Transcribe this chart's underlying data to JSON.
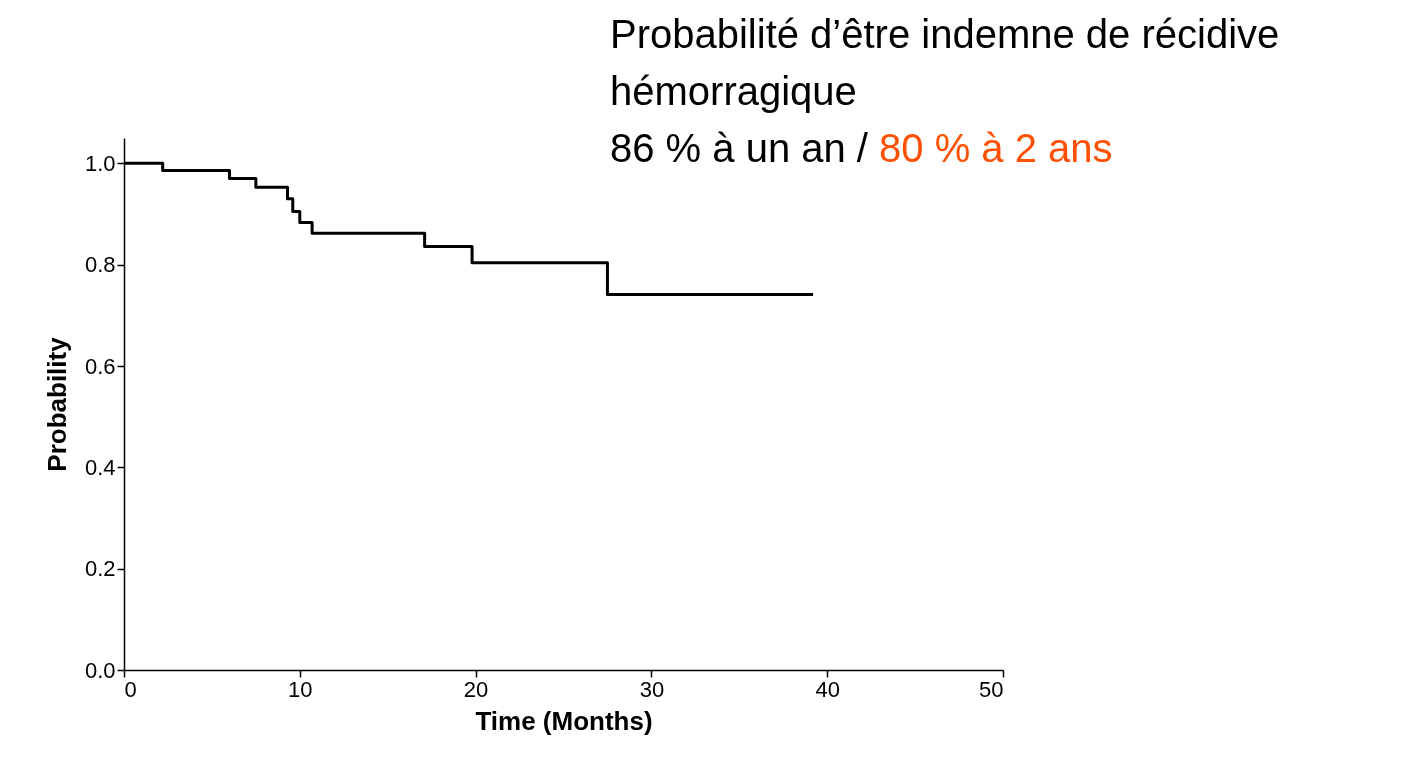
{
  "chart_data": {
    "type": "step",
    "title": "Probabilité d’être indemne de récidive hémorragique",
    "annotations": [
      "86 % à un an / ",
      "80 % à 2 ans"
    ],
    "xlabel": "Time (Months)",
    "ylabel": "Probability",
    "x": [
      0,
      2.2,
      6.0,
      7.5,
      9.3,
      9.6,
      10.0,
      10.7,
      17.1,
      19.8,
      27.5,
      39.2
    ],
    "series": [
      {
        "color": "#000000",
        "values": [
          1.0,
          0.986,
          0.97,
          0.953,
          0.93,
          0.905,
          0.883,
          0.862,
          0.836,
          0.804,
          0.741,
          0.741
        ]
      }
    ],
    "xlim": [
      0,
      50
    ],
    "xticks": [
      0,
      10,
      20,
      30,
      40,
      50
    ],
    "ylim": [
      0,
      1.05
    ],
    "yticks": [
      {
        "value": 0,
        "label": "0.0"
      },
      {
        "value": 0.2,
        "label": "0.2"
      },
      {
        "value": 0.4,
        "label": "0.4"
      },
      {
        "value": 0.6,
        "label": "0.6"
      },
      {
        "value": 0.8,
        "label": "0.8"
      },
      {
        "value": 1,
        "label": "1.0"
      }
    ],
    "grid": false
  }
}
